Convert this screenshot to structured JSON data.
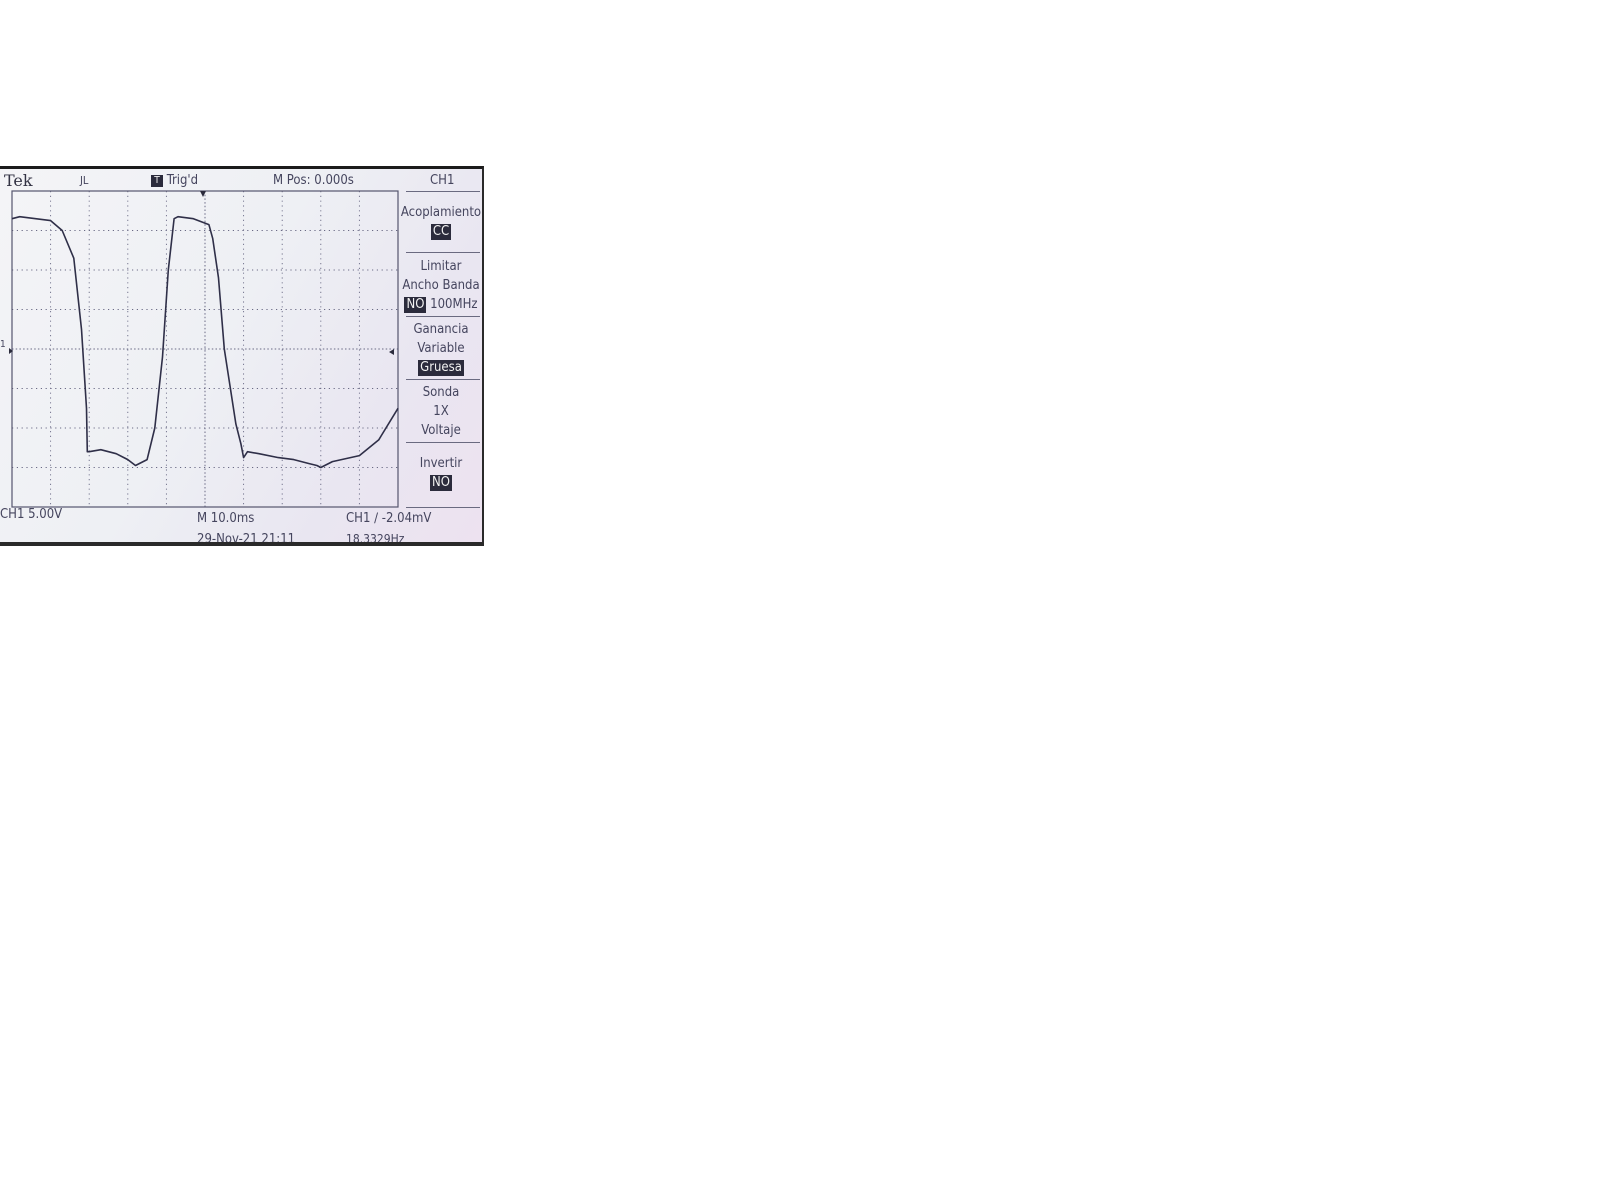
{
  "header": {
    "brand": "Tek",
    "run_indicator": "JL",
    "trigger_status": "Trig'd",
    "trigger_icon_letter": "T",
    "m_pos": "M Pos: 0.000s",
    "channel": "CH1"
  },
  "menu": {
    "coupling_label": "Acoplamiento",
    "coupling_value": "CC",
    "bw_label_line1": "Limitar",
    "bw_label_line2": "Ancho Banda",
    "bw_selected": "NO",
    "bw_other": "100MHz",
    "gain_label_line1": "Ganancia",
    "gain_label_line2": "Variable",
    "gain_value": "Gruesa",
    "probe_label": "Sonda",
    "probe_value": "1X",
    "probe_unit": "Voltaje",
    "invert_label": "Invertir",
    "invert_value": "NO"
  },
  "footer": {
    "ch1_scale": "CH1  5.00V",
    "timebase": "M 10.0ms",
    "trigger_info": "CH1 ∕ -2.04mV",
    "date": "29-Nov-21 21:11",
    "frequency": "18.3329Hz"
  },
  "ground_marker": "1",
  "chart_data": {
    "type": "line",
    "description_units": "x in ms from left edge of graticule, y in divisions (center = 0)",
    "grid": {
      "x_divisions": 10,
      "y_divisions": 8
    },
    "time_per_div_ms": 10.0,
    "volts_per_div": 5.0,
    "series": [
      {
        "x": [
          0,
          2,
          10,
          13,
          16,
          18,
          19.3,
          19.5,
          20,
          23,
          27,
          30,
          32,
          35,
          37,
          39,
          40.5,
          42,
          43,
          47,
          51,
          52,
          53.5,
          55,
          58,
          59.3,
          60,
          61,
          64,
          69,
          73,
          77,
          79,
          80,
          83,
          90,
          95,
          100
        ],
        "y": [
          3.3,
          3.35,
          3.25,
          3.0,
          2.3,
          0.5,
          -1.5,
          -2.6,
          -2.6,
          -2.55,
          -2.65,
          -2.8,
          -2.95,
          -2.8,
          -2.0,
          -0.2,
          2.0,
          3.3,
          3.35,
          3.3,
          3.15,
          2.8,
          1.8,
          0.0,
          -1.9,
          -2.4,
          -2.75,
          -2.6,
          -2.65,
          -2.75,
          -2.8,
          -2.9,
          -2.95,
          -3.0,
          -2.85,
          -2.7,
          -2.3,
          -1.5
        ]
      }
    ]
  }
}
